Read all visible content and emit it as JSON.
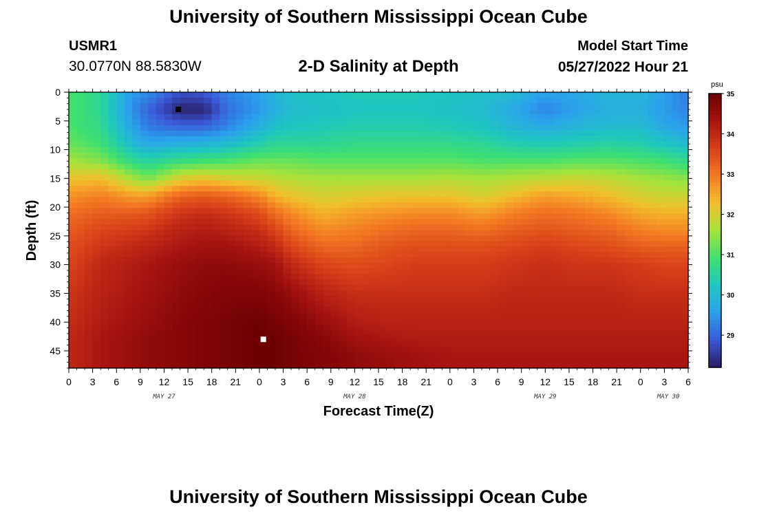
{
  "header": {
    "title": "University of Southern Mississippi Ocean Cube",
    "station_id": "USMR1",
    "coordinates": "30.0770N  88.5830W",
    "subtitle": "2-D Salinity at Depth",
    "model_start_label": "Model Start Time",
    "model_start_value": "05/27/2022 Hour 21"
  },
  "footer": {
    "title": "University of Southern Mississippi Ocean Cube"
  },
  "chart_data": {
    "type": "heatmap",
    "xlabel": "Forecast Time(Z)",
    "ylabel": "Depth (ft)",
    "x_unit": "hours since 2022-05-27 00Z",
    "xlim": [
      0,
      78
    ],
    "ylim": [
      0,
      48
    ],
    "y_inverted": true,
    "x_ticks": [
      0,
      3,
      6,
      9,
      12,
      15,
      18,
      21,
      24,
      27,
      30,
      33,
      36,
      39,
      42,
      45,
      48,
      51,
      54,
      57,
      60,
      63,
      66,
      69,
      72,
      75,
      78
    ],
    "x_tick_labels": [
      "0",
      "3",
      "6",
      "9",
      "12",
      "15",
      "18",
      "21",
      "0",
      "3",
      "6",
      "9",
      "12",
      "15",
      "18",
      "21",
      "0",
      "3",
      "6",
      "9",
      "12",
      "15",
      "18",
      "21",
      "0",
      "3",
      "6"
    ],
    "y_ticks": [
      0,
      5,
      10,
      15,
      20,
      25,
      30,
      35,
      40,
      45
    ],
    "y_tick_labels": [
      "0",
      "5",
      "10",
      "15",
      "20",
      "25",
      "30",
      "35",
      "40",
      "45"
    ],
    "date_labels": [
      {
        "text": "MAY 27",
        "x": 12
      },
      {
        "text": "MAY 28",
        "x": 36
      },
      {
        "text": "MAY 29",
        "x": 60
      },
      {
        "text": "MAY 30",
        "x": 75.5
      }
    ],
    "colorbar": {
      "unit": "psu",
      "min": 28.2,
      "max": 35,
      "ticks": [
        29,
        30,
        31,
        32,
        33,
        34,
        35
      ],
      "colors": [
        "#2a1a5e",
        "#3a58d8",
        "#2aa0ec",
        "#1fc8c0",
        "#3ee070",
        "#a6e33a",
        "#f2c02c",
        "#f57a22",
        "#d8401a",
        "#a81410",
        "#6e0000"
      ]
    },
    "markers": [
      {
        "kind": "min",
        "x": 13.8,
        "y": 3,
        "color": "#000000"
      },
      {
        "kind": "max",
        "x": 24.5,
        "y": 43,
        "color": "#ffffff"
      }
    ],
    "x_knots": [
      0,
      4,
      8,
      10,
      14,
      17,
      20,
      24,
      26,
      28,
      32,
      36,
      40,
      44,
      48,
      52,
      56,
      60,
      64,
      68,
      72,
      75,
      78
    ],
    "y_knots": [
      0,
      3,
      6,
      9,
      12,
      15,
      18,
      21,
      24,
      27,
      30,
      35,
      40,
      43,
      46,
      48
    ],
    "salinity_grid": [
      [
        31.0,
        31.0,
        31.0,
        31.2,
        31.6,
        32.2,
        32.7,
        33.1,
        33.3,
        33.5,
        33.6,
        33.8,
        33.9,
        34.0,
        34.0,
        34.0
      ],
      [
        30.6,
        30.6,
        30.7,
        30.9,
        31.4,
        32.3,
        32.9,
        33.3,
        33.6,
        33.8,
        34.0,
        34.1,
        34.2,
        34.3,
        34.3,
        34.3
      ],
      [
        29.5,
        29.4,
        29.6,
        30.0,
        30.7,
        31.6,
        32.6,
        33.3,
        33.7,
        34.0,
        34.2,
        34.3,
        34.4,
        34.5,
        34.5,
        34.5
      ],
      [
        29.4,
        29.0,
        29.2,
        29.7,
        30.5,
        31.3,
        32.6,
        33.4,
        33.8,
        34.1,
        34.3,
        34.4,
        34.5,
        34.6,
        34.6,
        34.6
      ],
      [
        28.8,
        28.3,
        29.0,
        29.8,
        30.8,
        32.0,
        33.2,
        33.8,
        34.1,
        34.3,
        34.5,
        34.6,
        34.7,
        34.7,
        34.7,
        34.7
      ],
      [
        28.9,
        28.3,
        29.0,
        29.9,
        30.9,
        32.2,
        33.3,
        33.9,
        34.2,
        34.4,
        34.6,
        34.7,
        34.8,
        34.8,
        34.8,
        34.8
      ],
      [
        29.3,
        29.1,
        29.3,
        30.0,
        31.0,
        32.0,
        33.2,
        33.8,
        34.1,
        34.4,
        34.6,
        34.8,
        34.9,
        34.9,
        34.9,
        34.9
      ],
      [
        29.6,
        29.5,
        29.8,
        30.4,
        31.2,
        31.9,
        32.8,
        33.5,
        33.9,
        34.2,
        34.5,
        34.8,
        35.0,
        35.0,
        35.0,
        35.0
      ],
      [
        29.9,
        29.8,
        30.1,
        30.6,
        31.2,
        31.8,
        32.4,
        33.1,
        33.6,
        34.0,
        34.4,
        34.7,
        34.9,
        35.0,
        35.0,
        35.0
      ],
      [
        30.1,
        30.0,
        30.2,
        30.6,
        31.2,
        31.7,
        32.2,
        32.8,
        33.2,
        33.6,
        34.0,
        34.5,
        34.8,
        34.9,
        34.9,
        34.9
      ],
      [
        30.2,
        30.1,
        30.3,
        30.6,
        31.1,
        31.6,
        32.0,
        32.4,
        32.8,
        33.2,
        33.6,
        34.1,
        34.5,
        34.7,
        34.8,
        34.8
      ],
      [
        30.3,
        30.2,
        30.4,
        30.7,
        31.1,
        31.6,
        32.1,
        32.6,
        32.9,
        33.2,
        33.5,
        33.9,
        34.2,
        34.4,
        34.6,
        34.6
      ],
      [
        30.3,
        30.2,
        30.4,
        30.7,
        31.1,
        31.6,
        32.2,
        32.7,
        33.1,
        33.4,
        33.6,
        33.9,
        34.1,
        34.3,
        34.5,
        34.5
      ],
      [
        30.3,
        30.2,
        30.4,
        30.7,
        31.1,
        31.6,
        32.2,
        32.8,
        33.2,
        33.5,
        33.7,
        33.9,
        34.1,
        34.2,
        34.4,
        34.4
      ],
      [
        30.2,
        30.1,
        30.3,
        30.7,
        31.1,
        31.7,
        32.2,
        32.8,
        33.2,
        33.5,
        33.7,
        33.9,
        34.1,
        34.2,
        34.3,
        34.3
      ],
      [
        30.1,
        30.0,
        30.2,
        30.6,
        31.0,
        31.6,
        32.0,
        32.6,
        33.1,
        33.5,
        33.7,
        33.9,
        34.1,
        34.2,
        34.3,
        34.3
      ],
      [
        30.0,
        29.7,
        29.9,
        30.4,
        31.0,
        31.7,
        32.3,
        32.9,
        33.3,
        33.6,
        33.8,
        34.0,
        34.1,
        34.2,
        34.3,
        34.3
      ],
      [
        29.6,
        29.3,
        29.7,
        30.3,
        31.0,
        31.8,
        32.6,
        33.1,
        33.4,
        33.7,
        33.9,
        34.0,
        34.1,
        34.2,
        34.3,
        34.3
      ],
      [
        29.7,
        29.6,
        29.9,
        30.4,
        31.1,
        31.9,
        32.5,
        33.0,
        33.3,
        33.6,
        33.8,
        34.0,
        34.1,
        34.2,
        34.3,
        34.3
      ],
      [
        29.9,
        29.8,
        30.0,
        30.5,
        31.1,
        31.8,
        32.3,
        32.8,
        33.2,
        33.5,
        33.8,
        34.0,
        34.1,
        34.2,
        34.3,
        34.3
      ],
      [
        29.9,
        29.8,
        30.0,
        30.4,
        31.0,
        31.6,
        32.0,
        32.5,
        32.9,
        33.3,
        33.7,
        33.9,
        34.1,
        34.2,
        34.3,
        34.3
      ],
      [
        29.6,
        29.5,
        29.7,
        30.2,
        30.9,
        31.5,
        31.9,
        32.4,
        32.8,
        33.3,
        33.6,
        33.9,
        34.1,
        34.2,
        34.3,
        34.3
      ],
      [
        29.2,
        29.3,
        29.5,
        30.0,
        30.7,
        31.4,
        31.9,
        32.4,
        32.8,
        33.3,
        33.6,
        33.9,
        34.1,
        34.2,
        34.3,
        34.3
      ]
    ]
  }
}
